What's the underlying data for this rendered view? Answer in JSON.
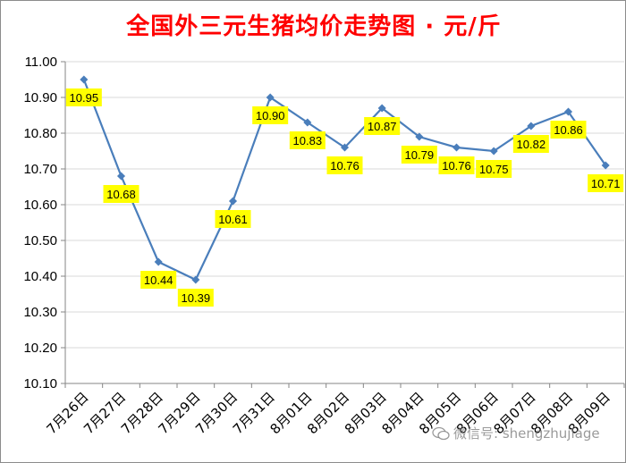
{
  "title": "全国外三元生猪均价走势图 · 元/斤",
  "watermark": "微信号: shengzhujiage",
  "colors": {
    "title": "#ff0000",
    "line": "#4a7ebb",
    "label_bg": "#ffff00",
    "grid": "#d9d9d9"
  },
  "chart_data": {
    "type": "line",
    "title": "全国外三元生猪均价走势图 · 元/斤",
    "xlabel": "",
    "ylabel": "",
    "categories": [
      "7月26日",
      "7月27日",
      "7月28日",
      "7月29日",
      "7月30日",
      "7月31日",
      "8月01日",
      "8月02日",
      "8月03日",
      "8月04日",
      "8月05日",
      "8月06日",
      "8月07日",
      "8月08日",
      "8月09日"
    ],
    "series": [
      {
        "values": [
          10.95,
          10.68,
          10.44,
          10.39,
          10.61,
          10.9,
          10.83,
          10.76,
          10.87,
          10.79,
          10.76,
          10.75,
          10.82,
          10.86,
          10.71
        ]
      }
    ],
    "data_labels": [
      "10.95",
      "10.68",
      "10.44",
      "10.39",
      "10.61",
      "10.90",
      "10.83",
      "10.76",
      "10.87",
      "10.79",
      "10.76",
      "10.75",
      "10.82",
      "10.86",
      "10.71"
    ],
    "ylim": [
      10.1,
      11.0
    ],
    "yticks": [
      "10.10",
      "10.20",
      "10.30",
      "10.40",
      "10.50",
      "10.60",
      "10.70",
      "10.80",
      "10.90",
      "11.00"
    ],
    "grid": true,
    "legend": "none"
  }
}
